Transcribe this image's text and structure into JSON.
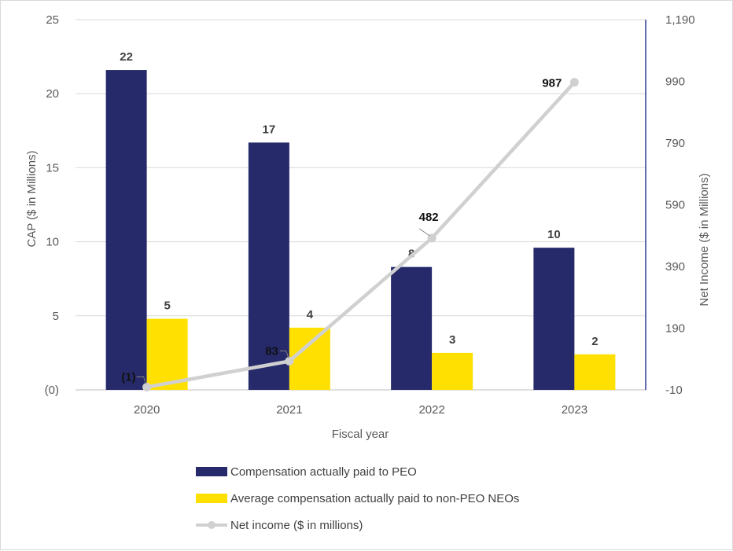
{
  "chart_data": {
    "type": "bar",
    "title": "",
    "xlabel": "Fiscal year",
    "ylabel": "CAP ($ in Millions)",
    "y2label": "Net Income ($ in Millions)",
    "categories": [
      "2020",
      "2021",
      "2022",
      "2023"
    ],
    "ylim": [
      0,
      25
    ],
    "yticks": [
      0,
      5,
      10,
      15,
      20,
      25
    ],
    "ytick_labels": [
      "(0)",
      "5",
      "10",
      "15",
      "20",
      "25"
    ],
    "y2lim": [
      -10,
      1190
    ],
    "y2ticks": [
      -10,
      190,
      390,
      590,
      790,
      990,
      1190
    ],
    "y2tick_labels": [
      "-10",
      "190",
      "390",
      "590",
      "790",
      "990",
      "1,190"
    ],
    "grid": true,
    "legend_position": "bottom",
    "series": [
      {
        "name": "Compensation actually paid to PEO",
        "type": "bar",
        "axis": "left",
        "color": "#262a6b",
        "values": [
          21.6,
          16.7,
          8.3,
          9.6
        ],
        "labels": [
          "22",
          "17",
          "8",
          "10"
        ]
      },
      {
        "name": "Average compensation actually paid to non-PEO NEOs",
        "type": "bar",
        "axis": "left",
        "color": "#ffe000",
        "values": [
          4.8,
          4.2,
          2.5,
          2.4
        ],
        "labels": [
          "5",
          "4",
          "3",
          "2"
        ]
      },
      {
        "name": "Net income ($ in millions)",
        "type": "line",
        "axis": "right",
        "color": "#d0d0d0",
        "values": [
          -1,
          83,
          482,
          987
        ],
        "labels": [
          "(1)",
          "83",
          "482",
          "987"
        ]
      }
    ]
  }
}
